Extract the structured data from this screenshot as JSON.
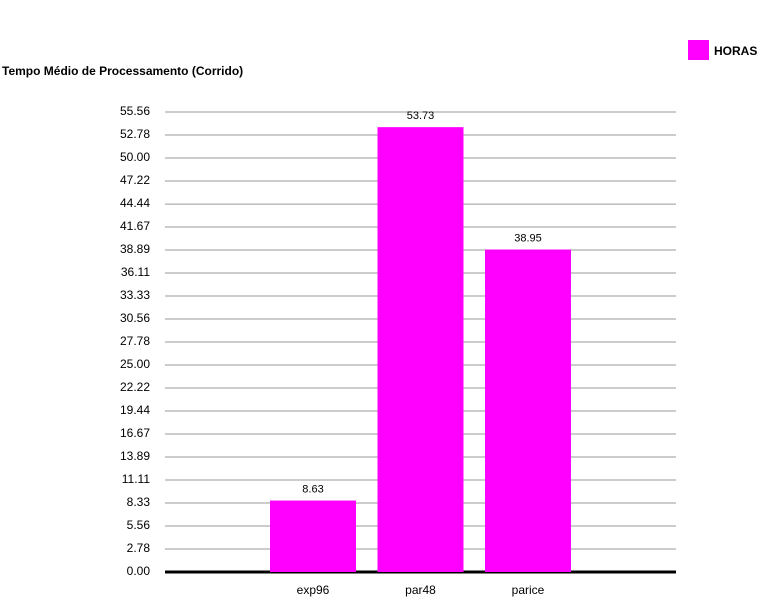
{
  "chart_data": {
    "type": "bar",
    "title": "Tempo Médio de Processamento (Corrido)",
    "categories": [
      "exp96",
      "par48",
      "parice"
    ],
    "series": [
      {
        "name": "HORAS",
        "color": "#ff00ff",
        "values": [
          8.63,
          53.73,
          38.95
        ]
      }
    ],
    "ylim": [
      0,
      55.56
    ],
    "yticks": [
      {
        "value": 0,
        "label": "0.00"
      },
      2.78,
      5.56,
      8.33,
      11.11,
      13.89,
      16.67,
      19.44,
      22.22,
      {
        "value": 25,
        "label": "25.00"
      },
      27.78,
      30.56,
      33.33,
      36.11,
      38.89,
      41.67,
      44.44,
      47.22,
      {
        "value": 50,
        "label": "50.00"
      },
      52.78,
      55.56
    ],
    "grid": true,
    "legend": "top-right"
  }
}
